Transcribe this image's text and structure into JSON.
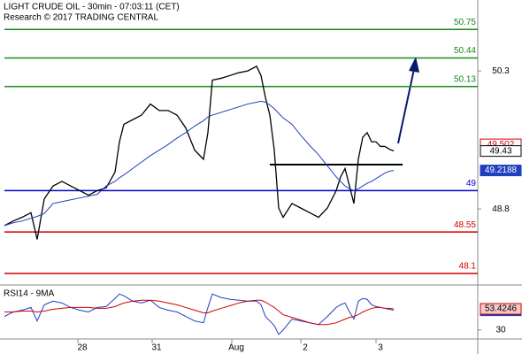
{
  "chart_data": [
    {
      "type": "line",
      "title": "LIGHT CRUDE OIL - 30min - 07:03:11 (CET)",
      "subtitle": "Research © 2017 TRADING CENTRAL",
      "x": [
        0,
        2,
        4,
        6,
        7.4,
        9,
        11,
        13,
        15,
        17,
        19,
        21,
        23,
        25,
        26,
        27,
        29,
        31,
        33,
        35,
        37,
        39,
        41,
        43,
        45,
        46,
        47,
        49,
        51,
        53,
        55,
        57,
        58,
        59,
        60,
        61,
        62,
        63,
        65,
        67,
        69,
        71,
        73,
        75,
        76,
        77,
        78,
        79,
        80,
        81,
        82,
        83,
        84,
        85,
        86,
        87,
        88
      ],
      "xlim": [
        -1,
        117
      ],
      "xticks": [
        {
          "value": 16.6,
          "label": "28"
        },
        {
          "value": 33.4,
          "label": "31"
        },
        {
          "value": 51.4,
          "label": "Aug"
        },
        {
          "value": 67,
          "label": "2"
        },
        {
          "value": 84,
          "label": "3"
        }
      ],
      "ylim": [
        47.975,
        51.07
      ],
      "yticks": [
        50.3,
        48.8
      ],
      "series": [
        {
          "color": "#000000",
          "values": [
            48.62,
            48.67,
            48.71,
            48.76,
            48.47,
            48.91,
            49.05,
            49.1,
            49.05,
            49.0,
            48.95,
            49.0,
            49.03,
            49.2,
            49.53,
            49.72,
            49.77,
            49.82,
            49.94,
            49.87,
            49.87,
            49.82,
            49.68,
            49.44,
            49.34,
            49.63,
            50.2,
            50.22,
            50.25,
            50.28,
            50.3,
            50.35,
            50.25,
            50.01,
            49.82,
            49.44,
            48.81,
            48.71,
            48.86,
            48.81,
            48.76,
            48.71,
            48.81,
            49.0,
            49.15,
            49.24,
            49.05,
            48.86,
            49.34,
            49.58,
            49.63,
            49.53,
            49.53,
            49.48,
            49.48,
            49.45,
            49.43
          ]
        },
        {
          "color": "#1f3fbf",
          "values": [
            48.62,
            48.65,
            48.67,
            48.7,
            48.72,
            48.75,
            48.86,
            48.88,
            48.9,
            48.92,
            48.94,
            48.96,
            49.05,
            49.1,
            49.14,
            49.17,
            49.24,
            49.31,
            49.38,
            49.44,
            49.5,
            49.57,
            49.63,
            49.7,
            49.76,
            49.8,
            49.82,
            49.85,
            49.88,
            49.91,
            49.94,
            49.96,
            49.97,
            49.96,
            49.93,
            49.89,
            49.84,
            49.79,
            49.72,
            49.6,
            49.49,
            49.39,
            49.27,
            49.15,
            49.1,
            49.05,
            49.02,
            49.0,
            49.02,
            49.05,
            49.08,
            49.1,
            49.13,
            49.16,
            49.19,
            49.21,
            49.2188
          ]
        }
      ],
      "levels": [
        {
          "value": 50.75,
          "color": "#1a8a1a"
        },
        {
          "value": 50.44,
          "color": "#1a8a1a"
        },
        {
          "value": 50.13,
          "color": "#1a8a1a"
        },
        {
          "value": 49,
          "color": "#0000cc"
        },
        {
          "value": 48.55,
          "color": "#d00000"
        },
        {
          "value": 48.1,
          "color": "#d00000"
        }
      ],
      "price_labels": [
        {
          "value": 49.502,
          "color": "#d00000"
        }
      ]
    },
    {
      "type": "line",
      "title": "RSI14 - 9MA",
      "x": [
        0,
        2,
        4,
        6,
        7.4,
        9,
        11,
        13,
        15,
        17,
        19,
        21,
        23,
        25,
        26,
        27,
        29,
        31,
        33,
        35,
        37,
        39,
        41,
        43,
        45,
        46,
        47,
        49,
        51,
        53,
        55,
        57,
        58,
        59,
        60,
        61,
        62,
        63,
        65,
        67,
        69,
        71,
        73,
        75,
        76,
        77,
        78,
        79,
        80,
        81,
        82,
        83,
        84,
        85,
        86,
        87,
        88
      ],
      "xlim": [
        -1,
        117
      ],
      "ylim": [
        20,
        80
      ],
      "yticks": [
        30
      ],
      "series": [
        {
          "color": "#1f3fbf",
          "values": [
            45,
            50,
            52,
            55,
            40,
            58,
            62,
            60,
            55,
            52,
            50,
            55,
            56,
            65,
            70,
            68,
            62,
            60,
            63,
            55,
            52,
            50,
            45,
            40,
            38,
            55,
            70,
            66,
            64,
            63,
            62,
            62,
            58,
            45,
            40,
            35,
            25,
            30,
            42,
            40,
            38,
            36,
            45,
            55,
            58,
            60,
            50,
            42,
            62,
            65,
            64,
            58,
            56,
            55,
            54,
            53,
            51.8642
          ]
        },
        {
          "color": "#d00000",
          "values": [
            50,
            50,
            51,
            51,
            50,
            51,
            53,
            54,
            55,
            55,
            55,
            54,
            54,
            56,
            58,
            60,
            62,
            63,
            63,
            62,
            60,
            58,
            55,
            52,
            49,
            49,
            51,
            54,
            57,
            60,
            62,
            63,
            63,
            61,
            58,
            55,
            51,
            47,
            44,
            41,
            38,
            36,
            36,
            38,
            40,
            42,
            44,
            45,
            47,
            50,
            52,
            54,
            55,
            55,
            54,
            54,
            53.4246
          ]
        }
      ]
    }
  ]
}
